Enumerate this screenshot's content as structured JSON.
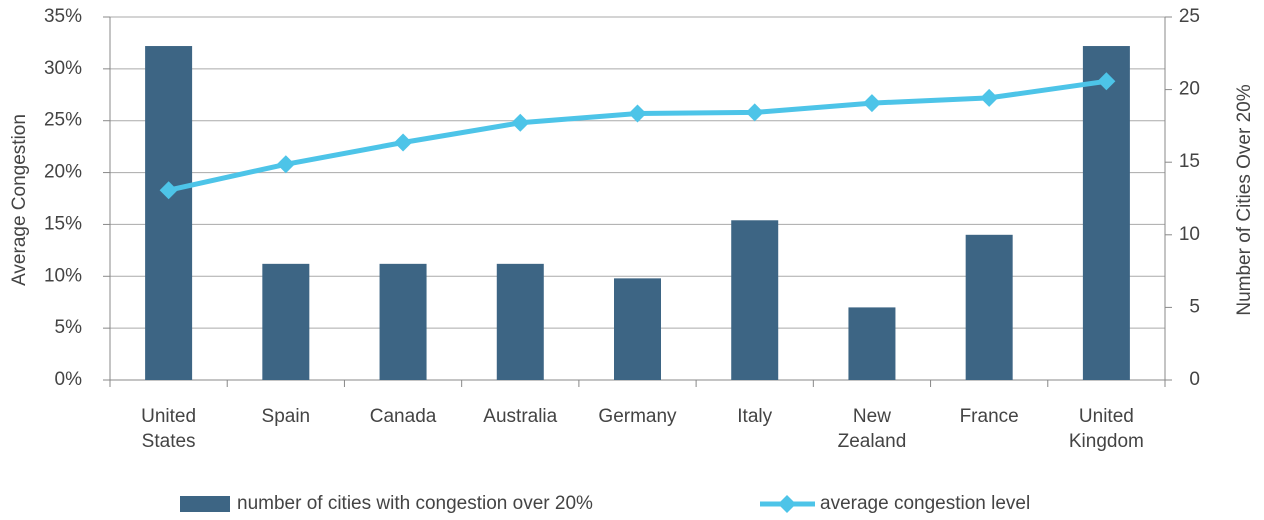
{
  "chart_data": {
    "type": "bar_line",
    "categories": [
      "United States",
      "Spain",
      "Canada",
      "Australia",
      "Germany",
      "Italy",
      "New Zealand",
      "France",
      "United Kingdom"
    ],
    "series": [
      {
        "name": "number of cities with congestion over 20%",
        "type": "bar",
        "axis": "y2",
        "color": "#3d6584",
        "values": [
          23,
          8,
          8,
          8,
          7,
          11,
          5,
          10,
          23
        ]
      },
      {
        "name": "average congestion level",
        "type": "line",
        "axis": "y",
        "color": "#4dc4e8",
        "values": [
          18.3,
          20.8,
          22.9,
          24.8,
          25.7,
          25.8,
          26.7,
          27.2,
          28.8
        ]
      }
    ],
    "ylabel": "Average Congestion",
    "y2label": "Number of Cities Over 20%",
    "ylim": [
      0,
      35
    ],
    "yticks": [
      {
        "value": 0,
        "label": "0%"
      },
      {
        "value": 5,
        "label": "5%"
      },
      {
        "value": 10,
        "label": "10%"
      },
      {
        "value": 15,
        "label": "15%"
      },
      {
        "value": 20,
        "label": "20%"
      },
      {
        "value": 25,
        "label": "25%"
      },
      {
        "value": 30,
        "label": "30%"
      },
      {
        "value": 35,
        "label": "35%"
      }
    ],
    "y2lim": [
      0,
      25
    ],
    "y2ticks": [
      0,
      5,
      10,
      15,
      20,
      25
    ],
    "grid": true,
    "legend": "bottom"
  }
}
